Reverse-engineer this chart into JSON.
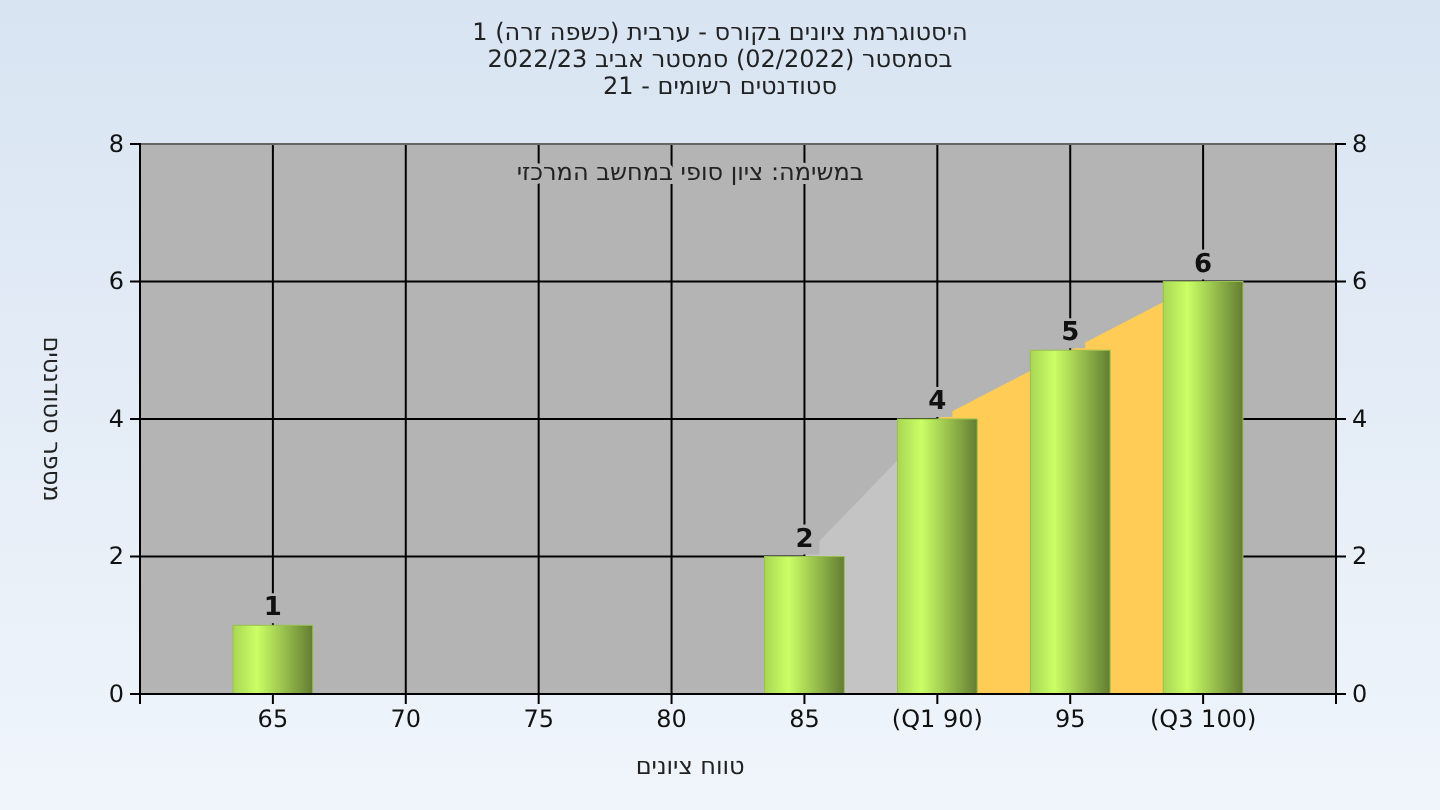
{
  "chart_data": {
    "type": "bar",
    "title": "היסטוגרמת ציונים בקורס - ערבית (כשפה זרה) 1",
    "subtitle": [
      "בסמסטר (02/2022) סמסטר אביב 2022/23",
      "סטודנטים רשומים - 21"
    ],
    "annotations": [
      "במשימה: ציון סופי במחשב המרכזי"
    ],
    "xlabel": "טווח ציונים",
    "ylabel": "מספר סטודנטים",
    "categories": [
      "65",
      "70",
      "75",
      "80",
      "85",
      "(Q1 90)",
      "95",
      "(Q3 100)"
    ],
    "series": [
      {
        "type": "area",
        "color": "#c4c4c4",
        "values": [
          null,
          null,
          null,
          null,
          2,
          4,
          null,
          null
        ]
      },
      {
        "type": "area",
        "color": "#ffcc55",
        "values": [
          null,
          null,
          null,
          null,
          null,
          4,
          5,
          6
        ]
      },
      {
        "color": "#98c04c",
        "values": [
          1,
          0,
          0,
          0,
          2,
          4,
          5,
          6
        ],
        "value_labels": [
          "1",
          null,
          null,
          null,
          "2",
          "4",
          "5",
          "6"
        ]
      }
    ],
    "ylim": [
      0,
      8
    ],
    "yticks": [
      0,
      2,
      4,
      6,
      8
    ],
    "y2lim": [
      0,
      8
    ],
    "y2ticks": [
      0,
      2,
      4,
      6,
      8
    ],
    "grid": true
  }
}
